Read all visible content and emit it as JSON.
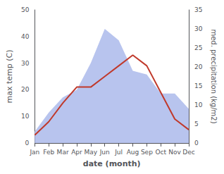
{
  "chart_data": {
    "type": "line",
    "categories": [
      "Jan",
      "Feb",
      "Mar",
      "Apr",
      "May",
      "Jun",
      "Jul",
      "Aug",
      "Sep",
      "Oct",
      "Nov",
      "Dec"
    ],
    "series": [
      {
        "type": "area",
        "color": "#b8c4ee",
        "axis": "y2",
        "values": [
          3,
          8,
          12,
          14,
          21,
          30,
          27,
          19,
          18,
          13,
          13,
          9
        ]
      },
      {
        "type": "line",
        "color": "#c0392b",
        "values": [
          3,
          8,
          15,
          21,
          21,
          25,
          29,
          33,
          29,
          19,
          9,
          5
        ]
      }
    ],
    "xlabel": "date (month)",
    "ylabel": "max temp (C)",
    "y2label": "med. precipitation (kg/m2)",
    "ylim": [
      0,
      50
    ],
    "yticks": [
      0,
      10,
      20,
      30,
      40,
      50
    ],
    "y2lim": [
      0,
      35
    ],
    "y2ticks": [
      0,
      5,
      10,
      15,
      20,
      25,
      30,
      35
    ],
    "grid": false
  }
}
